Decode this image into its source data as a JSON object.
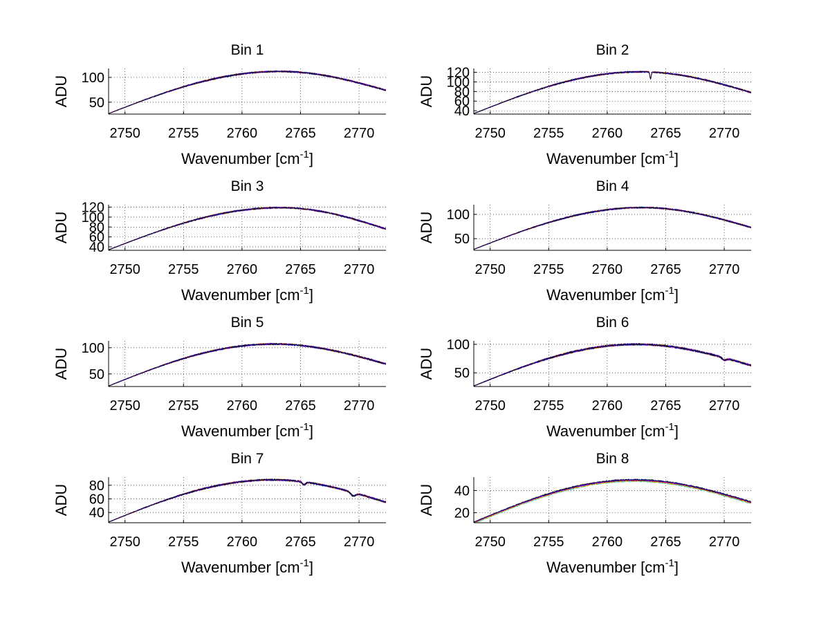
{
  "chart_data": [
    {
      "type": "line",
      "title": "Bin 1",
      "xlabel": "Wavenumber [cm",
      "xlabel_sup": "-1",
      "xlabel_end": "]",
      "ylabel": "ADU",
      "xlim": [
        2748.6,
        2772.3
      ],
      "ylim": [
        26,
        118
      ],
      "xticks": [
        2750,
        2755,
        2760,
        2765,
        2770
      ],
      "yticks": [
        50,
        100
      ],
      "curve": {
        "start": 27,
        "peak": 112,
        "peak_x": 2763.2,
        "end": 74,
        "noise": 1.5,
        "dips": []
      },
      "grid": true
    },
    {
      "type": "line",
      "title": "Bin 2",
      "xlabel": "Wavenumber [cm",
      "xlabel_sup": "-1",
      "xlabel_end": "]",
      "ylabel": "ADU",
      "xlim": [
        2748.6,
        2772.3
      ],
      "ylim": [
        33,
        128
      ],
      "xticks": [
        2750,
        2755,
        2760,
        2765,
        2770
      ],
      "yticks": [
        40,
        60,
        80,
        100,
        120
      ],
      "curve": {
        "start": 34,
        "peak": 121,
        "peak_x": 2762.8,
        "end": 78,
        "noise": 1.5,
        "dips": [
          {
            "x": 2763.7,
            "depth": 14,
            "width": 0.08
          }
        ]
      },
      "grid": true
    },
    {
      "type": "line",
      "title": "Bin 3",
      "xlabel": "Wavenumber [cm",
      "xlabel_sup": "-1",
      "xlabel_end": "]",
      "ylabel": "ADU",
      "xlim": [
        2748.6,
        2772.3
      ],
      "ylim": [
        33,
        125
      ],
      "xticks": [
        2750,
        2755,
        2760,
        2765,
        2770
      ],
      "yticks": [
        40,
        60,
        80,
        100,
        120
      ],
      "curve": {
        "start": 34,
        "peak": 119,
        "peak_x": 2763.3,
        "end": 76,
        "noise": 1.5,
        "dips": []
      },
      "grid": true
    },
    {
      "type": "line",
      "title": "Bin 4",
      "xlabel": "Wavenumber [cm",
      "xlabel_sup": "-1",
      "xlabel_end": "]",
      "ylabel": "ADU",
      "xlim": [
        2748.6,
        2772.3
      ],
      "ylim": [
        26,
        120
      ],
      "xticks": [
        2750,
        2755,
        2760,
        2765,
        2770
      ],
      "yticks": [
        50,
        100
      ],
      "curve": {
        "start": 28,
        "peak": 114,
        "peak_x": 2763.0,
        "end": 73,
        "noise": 1.5,
        "dips": []
      },
      "grid": true
    },
    {
      "type": "line",
      "title": "Bin 5",
      "xlabel": "Wavenumber [cm",
      "xlabel_sup": "-1",
      "xlabel_end": "]",
      "ylabel": "ADU",
      "xlim": [
        2748.6,
        2772.3
      ],
      "ylim": [
        26,
        113
      ],
      "xticks": [
        2750,
        2755,
        2760,
        2765,
        2770
      ],
      "yticks": [
        50,
        100
      ],
      "curve": {
        "start": 27,
        "peak": 107,
        "peak_x": 2762.7,
        "end": 69,
        "noise": 1.5,
        "dips": []
      },
      "grid": true
    },
    {
      "type": "line",
      "title": "Bin 6",
      "xlabel": "Wavenumber [cm",
      "xlabel_sup": "-1",
      "xlabel_end": "]",
      "ylabel": "ADU",
      "xlim": [
        2748.6,
        2772.3
      ],
      "ylim": [
        26,
        106
      ],
      "xticks": [
        2750,
        2755,
        2760,
        2765,
        2770
      ],
      "yticks": [
        50,
        100
      ],
      "curve": {
        "start": 27,
        "peak": 100,
        "peak_x": 2762.5,
        "end": 63,
        "noise": 1.6,
        "dips": [
          {
            "x": 2770.0,
            "depth": 4,
            "width": 0.25
          }
        ]
      },
      "grid": true
    },
    {
      "type": "line",
      "title": "Bin 7",
      "xlabel": "Wavenumber [cm",
      "xlabel_sup": "-1",
      "xlabel_end": "]",
      "ylabel": "ADU",
      "xlim": [
        2748.6,
        2772.3
      ],
      "ylim": [
        25,
        92
      ],
      "xticks": [
        2750,
        2755,
        2760,
        2765,
        2770
      ],
      "yticks": [
        40,
        60,
        80
      ],
      "curve": {
        "start": 26,
        "peak": 88,
        "peak_x": 2762.6,
        "end": 55,
        "noise": 1.2,
        "dips": [
          {
            "x": 2765.3,
            "depth": 4,
            "width": 0.2
          },
          {
            "x": 2769.5,
            "depth": 5,
            "width": 0.3
          }
        ]
      },
      "grid": true
    },
    {
      "type": "line",
      "title": "Bin 8",
      "xlabel": "Wavenumber [cm",
      "xlabel_sup": "-1",
      "xlabel_end": "]",
      "ylabel": "ADU",
      "xlim": [
        2748.6,
        2772.3
      ],
      "ylim": [
        11,
        52
      ],
      "xticks": [
        2750,
        2755,
        2760,
        2765,
        2770
      ],
      "yticks": [
        20,
        40
      ],
      "curve": {
        "start": 11,
        "peak": 49,
        "peak_x": 2762.3,
        "end": 29,
        "noise": 0.6,
        "dips": []
      },
      "grid": true
    }
  ],
  "series_colors": [
    "#00bfff",
    "#2ecc40",
    "#ffd700",
    "#ff8c00",
    "#ff0000",
    "#8b00ff",
    "#0000ff",
    "#000000"
  ]
}
